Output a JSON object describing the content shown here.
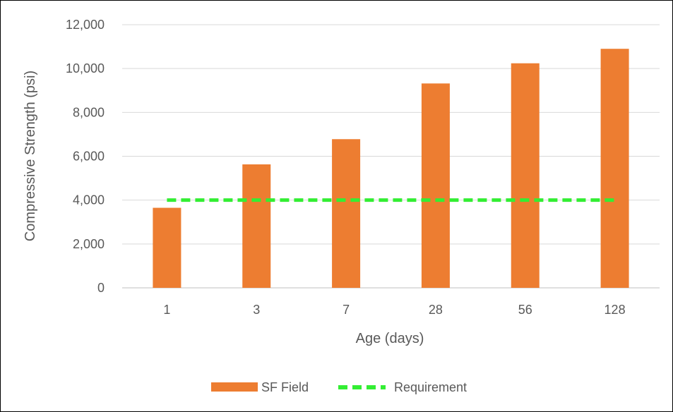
{
  "chart_data": {
    "type": "bar",
    "title": "",
    "xlabel": "Age (days)",
    "ylabel": "Compressive Strength (psi)",
    "categories": [
      "1",
      "3",
      "7",
      "28",
      "56",
      "128"
    ],
    "series": [
      {
        "name": "SF Field",
        "type": "bar",
        "color": "#ED7D31",
        "values": [
          3650,
          5630,
          6780,
          9320,
          10240,
          10900
        ]
      },
      {
        "name": "Requirement",
        "type": "line",
        "style": "dashed",
        "color": "#33EE33",
        "values": [
          4000,
          4000,
          4000,
          4000,
          4000,
          4000
        ]
      }
    ],
    "ylim": [
      0,
      12000
    ],
    "yticks": [
      0,
      2000,
      4000,
      6000,
      8000,
      10000,
      12000
    ],
    "ytick_labels": [
      "0",
      "2,000",
      "4,000",
      "6,000",
      "8,000",
      "10,000",
      "12,000"
    ],
    "grid": true,
    "legend_position": "bottom"
  }
}
